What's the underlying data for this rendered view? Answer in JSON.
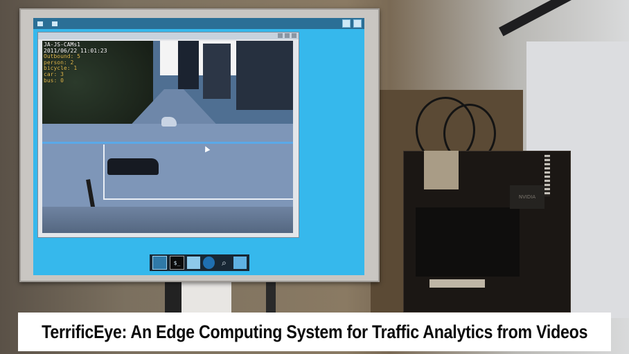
{
  "caption": {
    "text": "TerrificEye: An Edge Computing System for Traffic Analytics from Videos"
  },
  "overlay": {
    "lines": [
      "JA-JS-CAMs1",
      "2011/06/22  11:01:23",
      "Outbound: 5",
      "person: 2",
      "bicycle: 1",
      "car: 3",
      "bus: 0"
    ]
  },
  "board": {
    "chip_label": "NVIDIA"
  },
  "dock": {
    "terminal_glyph": "$_",
    "search_glyph": "⌕"
  },
  "colors": {
    "desktop": "#36b8ec",
    "overlay_text": "#e6c255",
    "caption_bg": "#ffffff"
  }
}
